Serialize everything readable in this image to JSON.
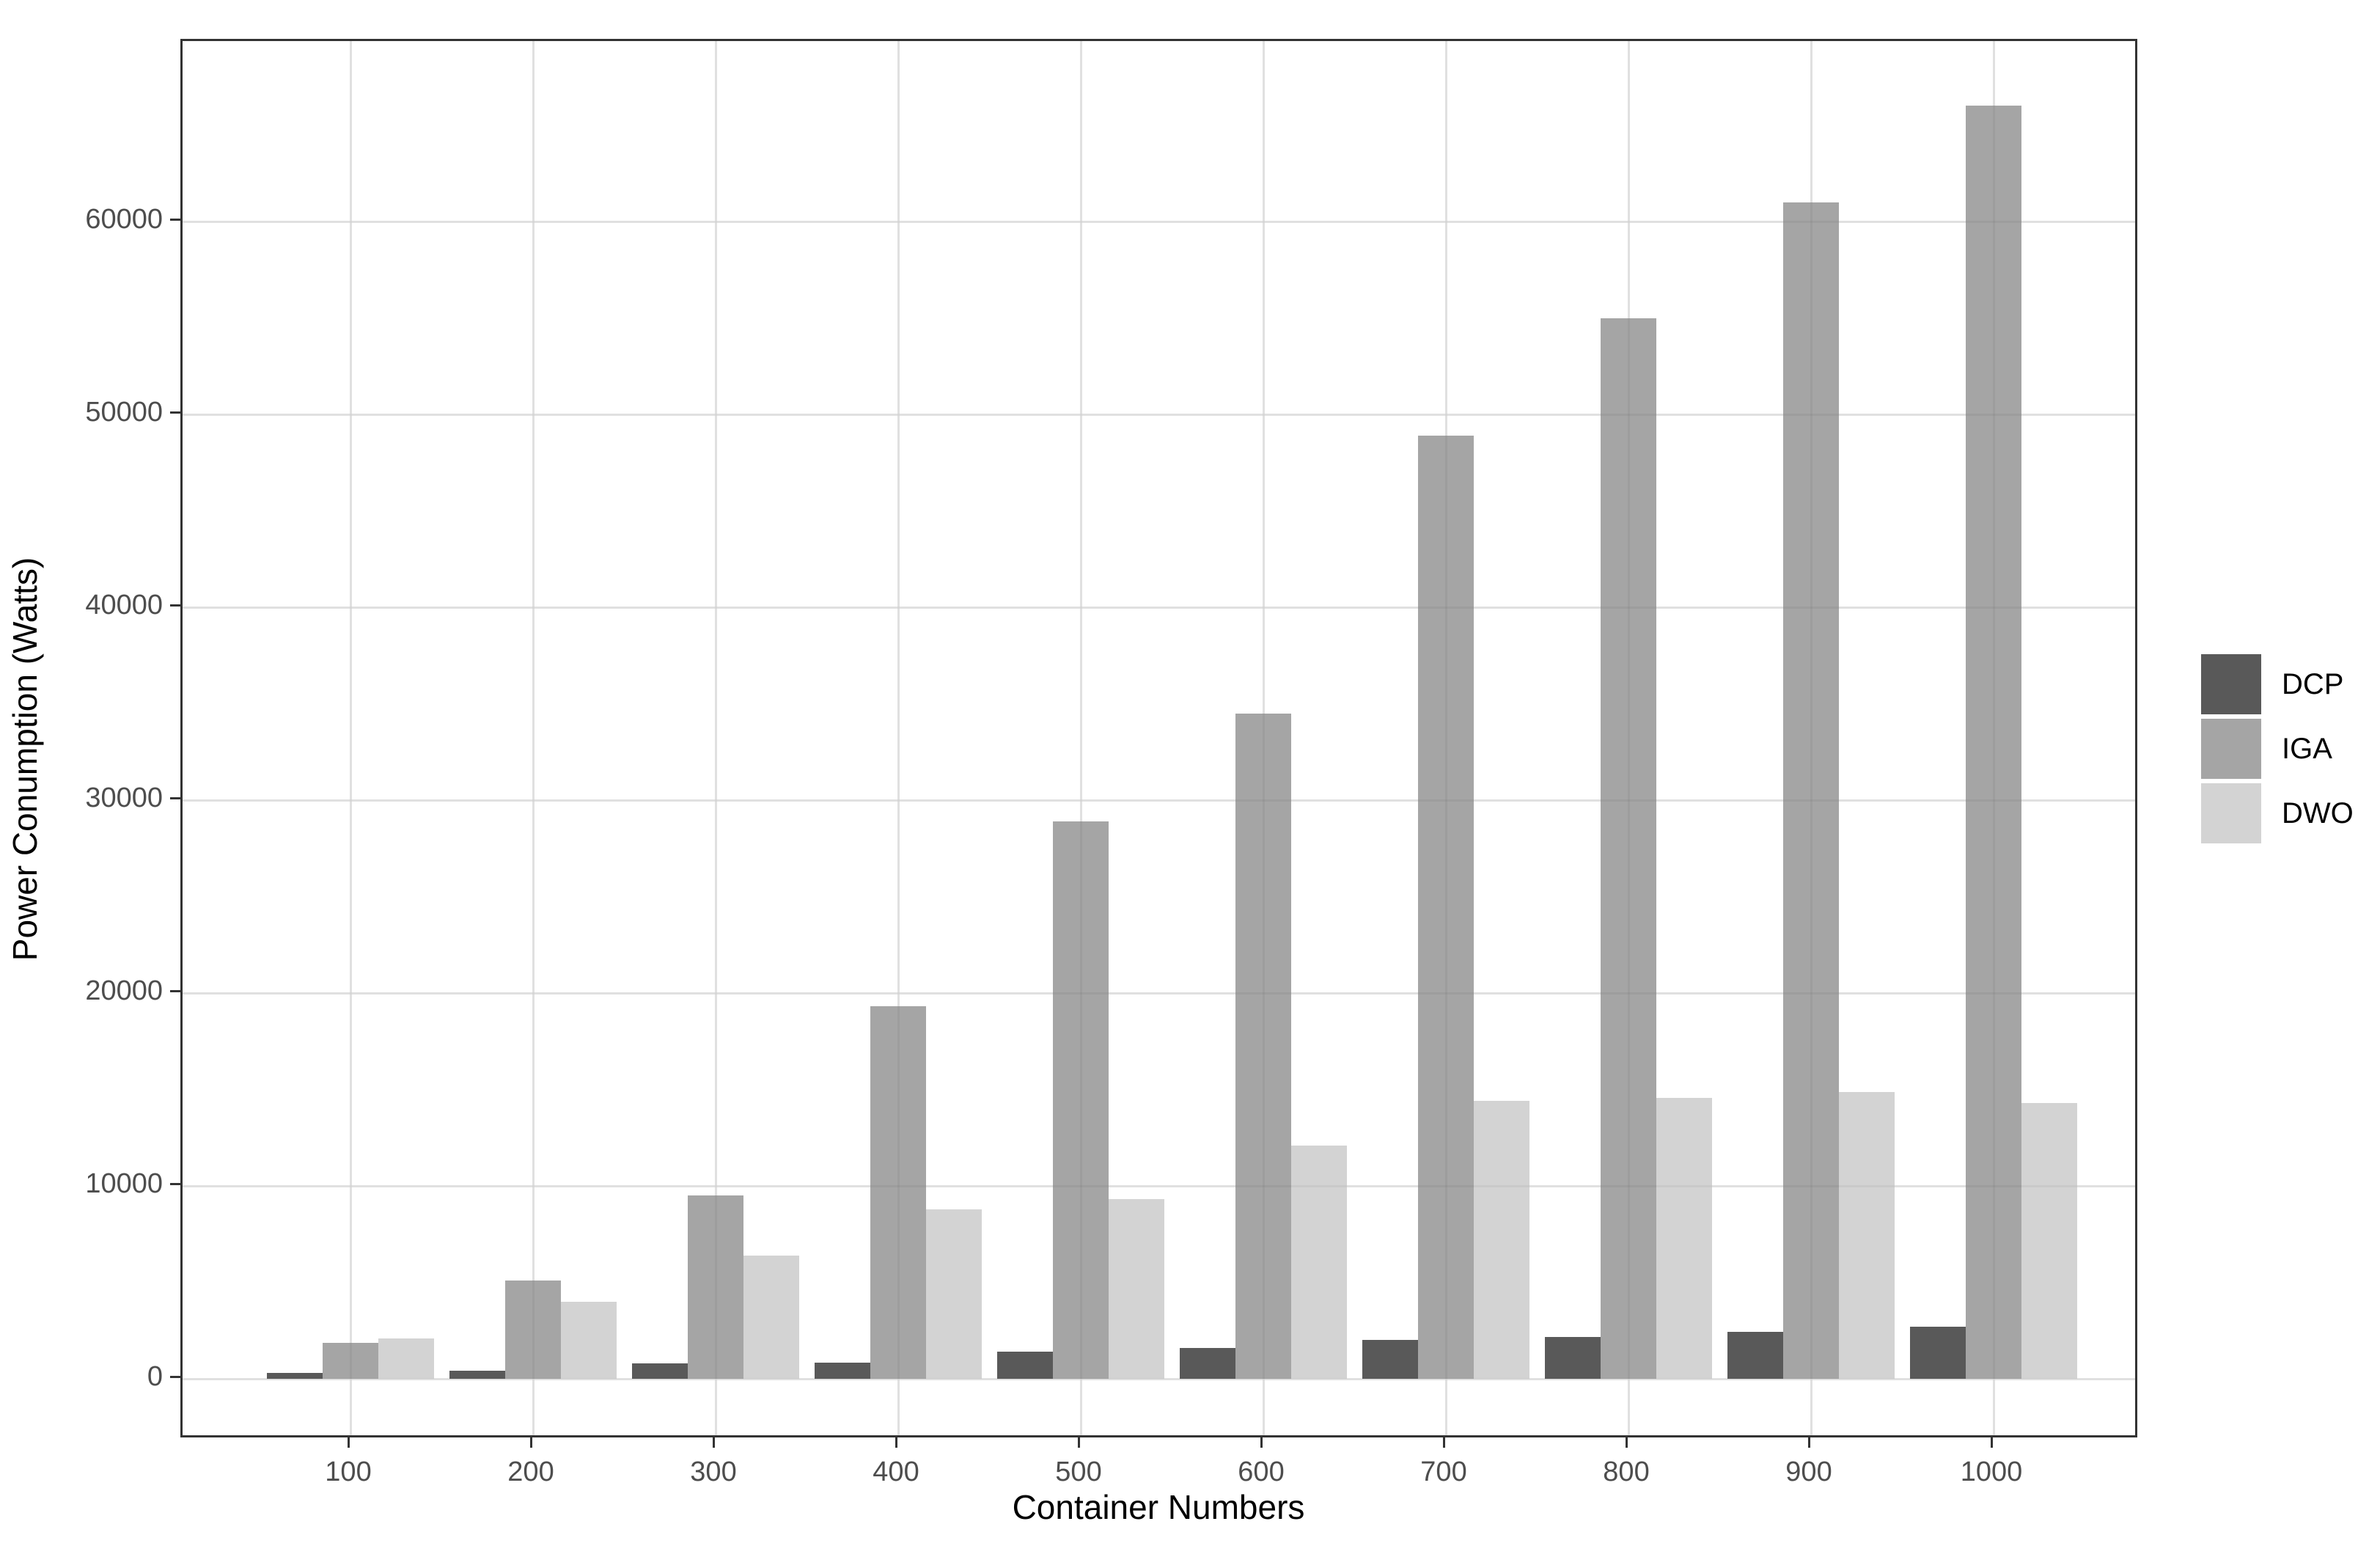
{
  "figure": {
    "background": "#ffffff",
    "panel_border_color": "#333333",
    "gridline_color": "#ebebeb",
    "tick_color": "#333333",
    "axis_text_color": "#4d4d4d",
    "title_text_color": "#000000"
  },
  "chart_data": {
    "type": "bar",
    "title": "",
    "xlabel": "Container Numbers",
    "ylabel": "Power Conumption (Watts)",
    "categories": [
      100,
      200,
      300,
      400,
      500,
      600,
      700,
      800,
      900,
      1000
    ],
    "series": [
      {
        "name": "DCP",
        "color": "#595959",
        "values": [
          300,
          400,
          800,
          850,
          1400,
          1600,
          2000,
          2150,
          2450,
          2700
        ]
      },
      {
        "name": "IGA",
        "color": "#a5a5a5",
        "values": [
          1850,
          5100,
          9500,
          19300,
          28900,
          34500,
          48900,
          55000,
          61000,
          66000
        ]
      },
      {
        "name": "DWO",
        "color": "#d3d3d3",
        "values": [
          2100,
          4000,
          6400,
          8800,
          9300,
          12100,
          14400,
          14550,
          14850,
          14300
        ]
      }
    ],
    "y_ticks": [
      0,
      10000,
      20000,
      30000,
      40000,
      50000,
      60000
    ],
    "ylim": [
      0,
      69000
    ],
    "grid": true,
    "legend_position": "right"
  }
}
